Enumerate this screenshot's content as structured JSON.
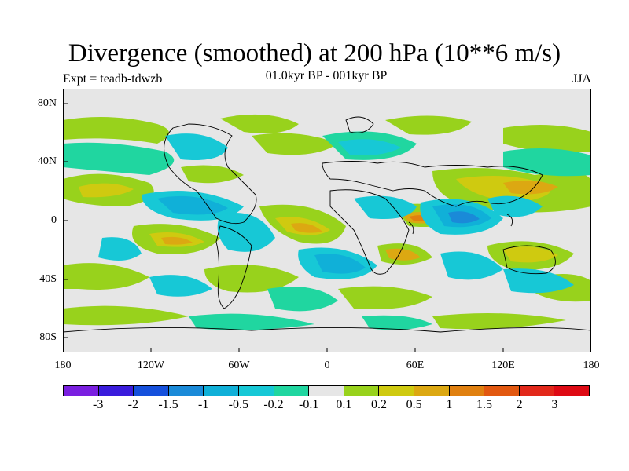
{
  "title": "Divergence (smoothed) at 200 hPa (10**6 m/s)",
  "experiment": "Expt = teadb-tdwzb",
  "period": "01.0kyr BP - 001kyr BP",
  "season": "JJA",
  "lat_labels": [
    "80N",
    "40N",
    "0",
    "40S",
    "80S"
  ],
  "lon_labels": [
    "180",
    "120W",
    "60W",
    "0",
    "60E",
    "120E",
    "180"
  ],
  "colorbar": {
    "labels": [
      "-3",
      "-2",
      "-1.5",
      "-1",
      "-0.5",
      "-0.2",
      "-0.1",
      "0.1",
      "0.2",
      "0.5",
      "1",
      "1.5",
      "2",
      "3"
    ],
    "colors": [
      "#7a1fe0",
      "#3a1cdc",
      "#1550dc",
      "#1a8ad8",
      "#10b0d8",
      "#17c8d6",
      "#20d6a0",
      "#e6e6e6",
      "#98d21c",
      "#cfca10",
      "#dca812",
      "#e08010",
      "#e25810",
      "#e2281a",
      "#de0a14"
    ]
  }
}
